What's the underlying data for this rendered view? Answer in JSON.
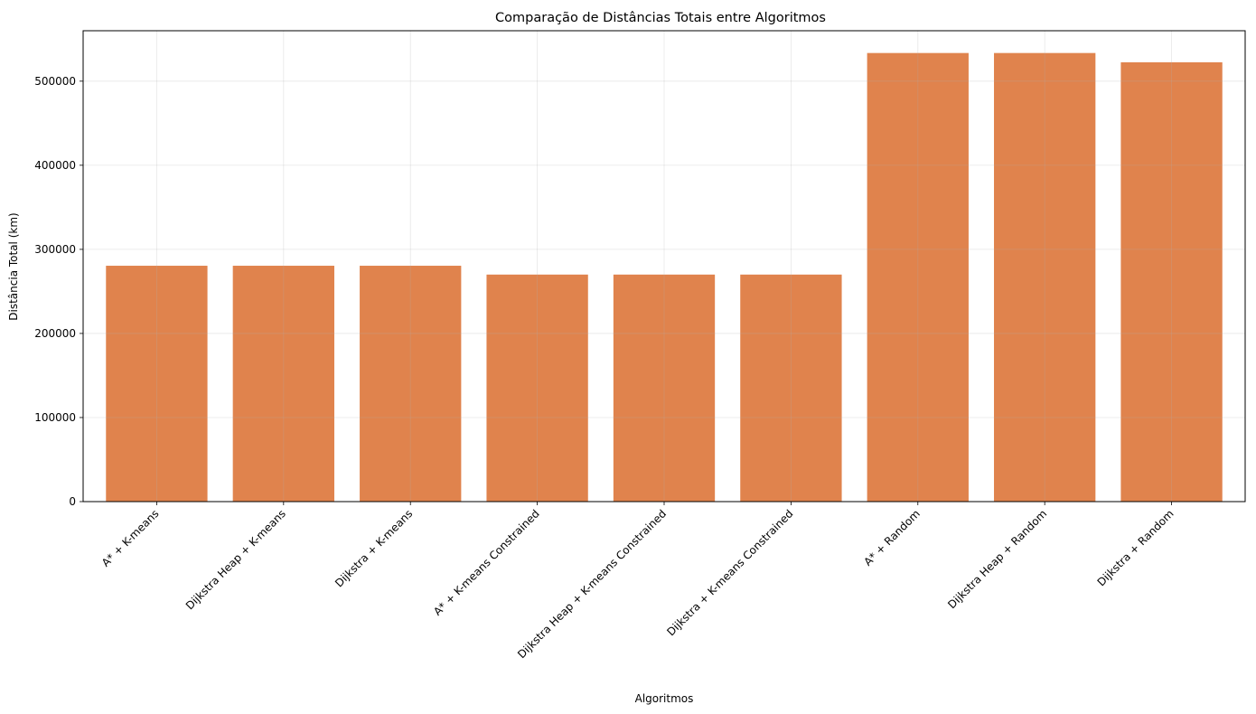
{
  "chart_data": {
    "type": "bar",
    "title": "Comparação de Distâncias Totais entre Algoritmos",
    "xlabel": "Algoritmos",
    "ylabel": "Distância Total (km)",
    "categories": [
      "A* + K-means",
      "Dijkstra Heap + K-means",
      "Dijkstra + K-means",
      "A* + K-means Constrained",
      "Dijkstra Heap + K-means Constrained",
      "Dijkstra + K-means Constrained",
      "A* + Random",
      "Dijkstra Heap + Random",
      "Dijkstra + Random"
    ],
    "values": [
      280500,
      280500,
      280500,
      270000,
      270000,
      270000,
      533500,
      533500,
      522500
    ],
    "ylim": [
      0,
      560000
    ],
    "yticks": [
      0,
      100000,
      200000,
      300000,
      400000,
      500000
    ],
    "ytick_labels": [
      "0",
      "100000",
      "200000",
      "300000",
      "400000",
      "500000"
    ],
    "grid": true,
    "bar_color": "#e0834d",
    "grid_color": "#e6e6e6"
  }
}
